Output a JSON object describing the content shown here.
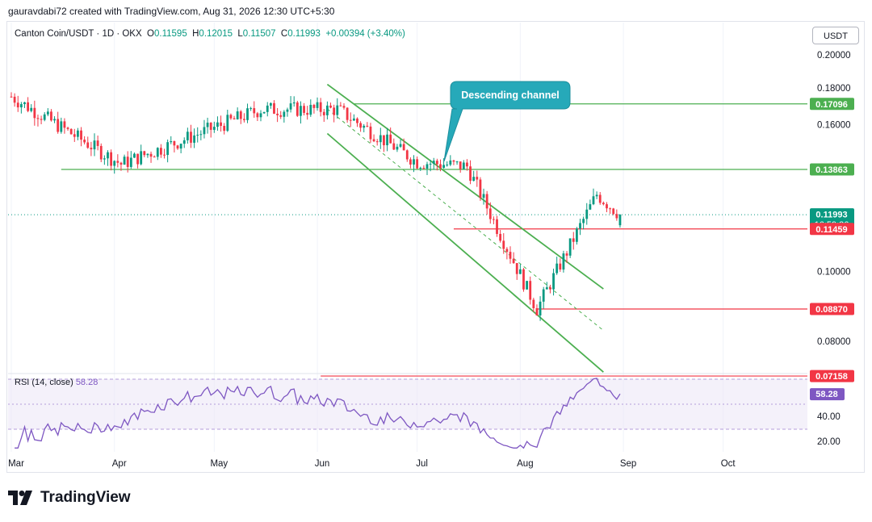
{
  "header": {
    "credit": "gauravdabi72 created with TradingView.com, Aug 31, 2026 12:30 UTC+5:30"
  },
  "legend": {
    "symbol": "Canton Coin/USDT · 1D · OKX",
    "open_label": "O",
    "open": "0.11595",
    "high_label": "H",
    "high": "0.12015",
    "low_label": "L",
    "low": "0.11507",
    "close_label": "C",
    "close": "0.11993",
    "change": "+0.00394 (+3.40%)"
  },
  "currency_button": "USDT",
  "annotation": {
    "text": "Descending channel",
    "color": "#26a9b9"
  },
  "price_axis": {
    "ticks": [
      {
        "label": "0.20000",
        "value": 0.2
      },
      {
        "label": "0.18000",
        "value": 0.18
      },
      {
        "label": "0.16000",
        "value": 0.16
      },
      {
        "label": "0.10000",
        "value": 0.1
      },
      {
        "label": "0.08000",
        "value": 0.08
      }
    ],
    "badges": [
      {
        "label": "0.17096",
        "value": 0.17096,
        "color": "#4caf50"
      },
      {
        "label": "0.13863",
        "value": 0.13863,
        "color": "#4caf50"
      },
      {
        "label": "0.11993",
        "sub": "16:59:36",
        "value": 0.11993,
        "color": "#089981"
      },
      {
        "label": "0.11459",
        "value": 0.11459,
        "color": "#f23645"
      },
      {
        "label": "0.08870",
        "value": 0.0887,
        "color": "#f23645"
      },
      {
        "label": "0.07158",
        "value": 0.07158,
        "color": "#f23645"
      }
    ]
  },
  "rsi": {
    "label": "RSI (14, close)",
    "value": "58.28",
    "color": "#7e57c2",
    "ticks": [
      {
        "label": "40.00",
        "value": 40
      },
      {
        "label": "20.00",
        "value": 20
      }
    ],
    "bands": [
      70,
      30
    ]
  },
  "time_axis": [
    "Mar",
    "Apr",
    "May",
    "Jun",
    "Jul",
    "Aug",
    "Sep",
    "Oct"
  ],
  "colors": {
    "up": "#089981",
    "down": "#f23645",
    "support": "#4caf50",
    "resistance": "#f23645"
  },
  "footer": {
    "brand": "TradingView"
  },
  "chart_data": {
    "type": "candlestick",
    "symbol": "Canton Coin/USDT",
    "interval": "1D",
    "exchange": "OKX",
    "y_scale": "log",
    "ylim": [
      0.0685,
      0.215
    ],
    "x_axis": [
      "Mar",
      "Apr",
      "May",
      "Jun",
      "Jul",
      "Aug",
      "Sep",
      "Oct"
    ],
    "horizontal_levels": [
      {
        "value": 0.17096,
        "color": "green",
        "x_start": "Jun 12"
      },
      {
        "value": 0.13863,
        "color": "green",
        "x_start": "Mar 16"
      },
      {
        "value": 0.11459,
        "color": "red",
        "x_start": "Jul 12"
      },
      {
        "value": 0.0887,
        "color": "red",
        "x_start": "Aug 6"
      },
      {
        "value": 0.07158,
        "color": "red",
        "x_start": "Jun 2"
      }
    ],
    "channel": {
      "label": "Descending channel",
      "upper": [
        [
          "Jun 4",
          0.182
        ],
        [
          "Aug 26",
          0.0946
        ]
      ],
      "lower": [
        [
          "Jun 4",
          0.1555
        ],
        [
          "Aug 26",
          0.0725
        ]
      ]
    },
    "key_points": [
      {
        "date": "Mar 1",
        "price": 0.175
      },
      {
        "date": "Apr 3",
        "price": 0.141
      },
      {
        "date": "May 15",
        "price": 0.168
      },
      {
        "date": "Jun 7",
        "price": 0.168
      },
      {
        "date": "Jul 1",
        "price": 0.142
      },
      {
        "date": "Jul 16",
        "price": 0.14
      },
      {
        "date": "Aug 6",
        "price": 0.0887
      },
      {
        "date": "Aug 24",
        "price": 0.128
      },
      {
        "date": "Aug 31",
        "price": 0.11993
      }
    ],
    "last": {
      "open": 0.11595,
      "high": 0.12015,
      "low": 0.11507,
      "close": 0.11993,
      "change": 0.00394,
      "change_pct": 3.4
    }
  }
}
